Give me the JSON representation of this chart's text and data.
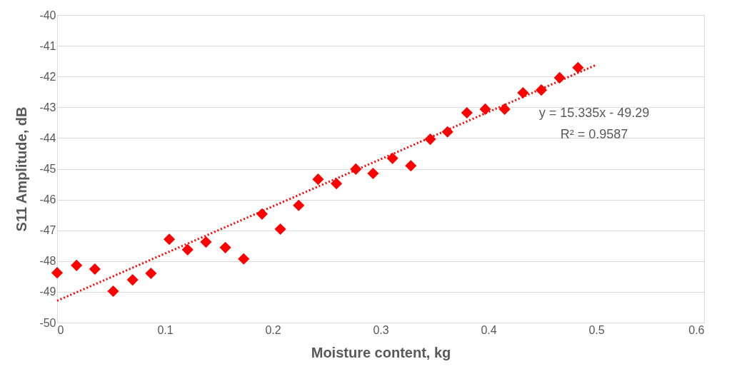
{
  "chart_data": {
    "type": "scatter",
    "xlabel": "Moisture content, kg",
    "ylabel": "S11 Amplitude, dB",
    "xlim": [
      0,
      0.6
    ],
    "xticks": [
      0,
      0.1,
      0.2,
      0.3,
      0.4,
      0.5,
      0.6
    ],
    "ylim": [
      -50,
      -40
    ],
    "yticks": [
      -50,
      -49,
      -48,
      -47,
      -46,
      -45,
      -44,
      -43,
      -42,
      -41,
      -40
    ],
    "grid": "y",
    "marker": "diamond",
    "annotations": [
      "y = 15.335x - 49.29",
      "R² = 0.9587"
    ],
    "series": [
      {
        "color": "#ff0000",
        "x": [
          0,
          0.018,
          0.035,
          0.052,
          0.07,
          0.087,
          0.104,
          0.121,
          0.138,
          0.156,
          0.173,
          0.19,
          0.207,
          0.224,
          0.242,
          0.259,
          0.277,
          0.293,
          0.311,
          0.328,
          0.346,
          0.362,
          0.38,
          0.397,
          0.415,
          0.432,
          0.449,
          0.466,
          0.483
        ],
        "values": [
          -48.38,
          -48.14,
          -48.26,
          -48.98,
          -48.61,
          -48.4,
          -47.29,
          -47.63,
          -47.38,
          -47.56,
          -47.93,
          -46.47,
          -46.96,
          -46.19,
          -45.34,
          -45.48,
          -45.01,
          -45.15,
          -44.66,
          -44.9,
          -44.04,
          -43.8,
          -43.18,
          -43.06,
          -43.06,
          -42.53,
          -42.44,
          -42.04,
          -41.71
        ]
      },
      {
        "type": "line",
        "color": "#ff0000",
        "line_style": "dotted",
        "marker": "none",
        "x": [
          0,
          0.5
        ],
        "values": [
          -49.29,
          -41.62
        ]
      }
    ]
  }
}
